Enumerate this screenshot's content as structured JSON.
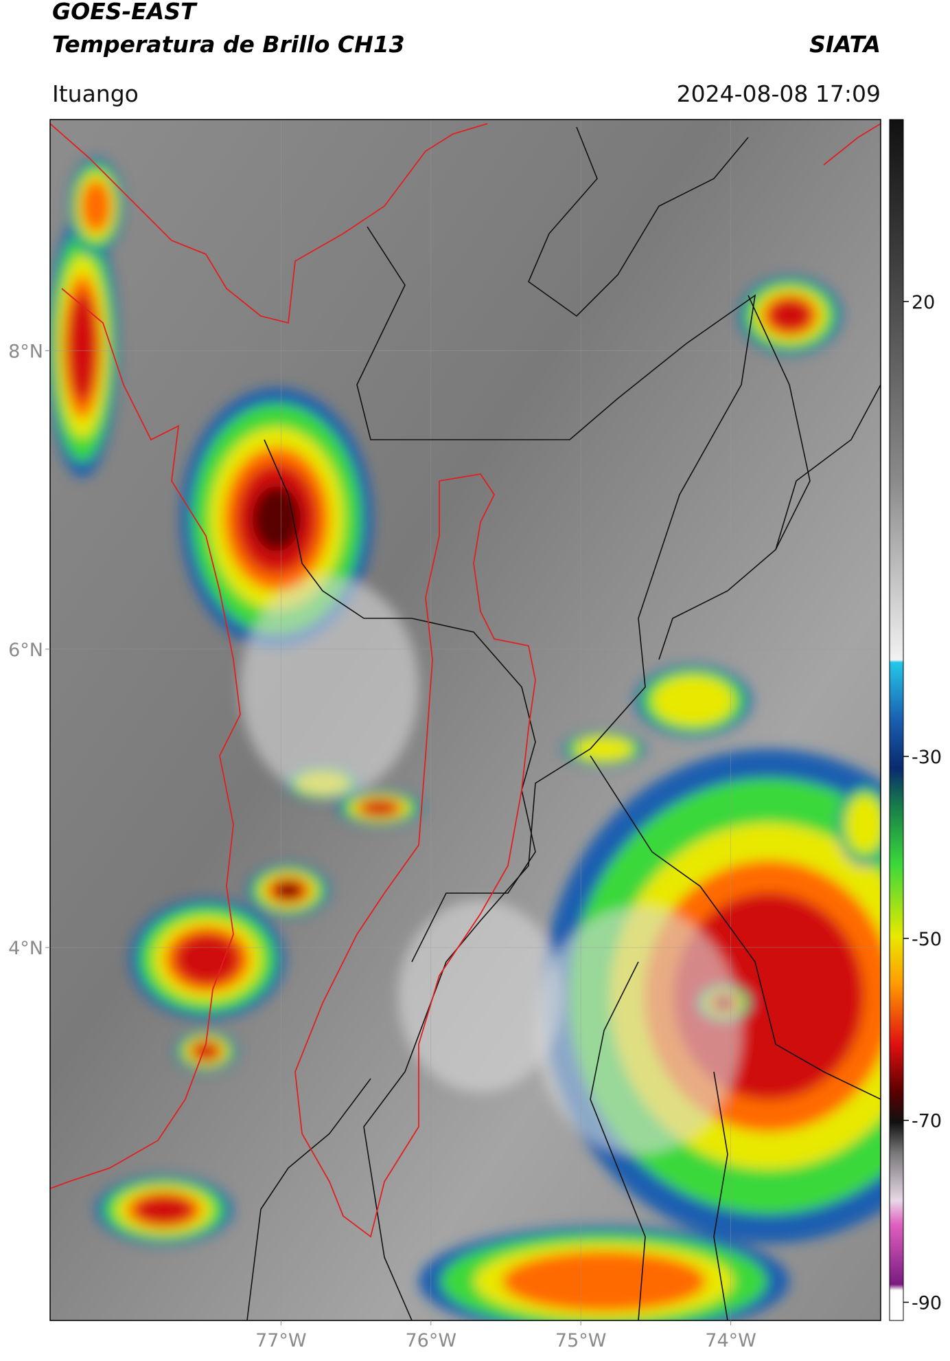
{
  "header": {
    "title": "GOES-EAST",
    "subtitle": "Temperatura de Brillo CH13",
    "agency": "SIATA",
    "location": "Ituango",
    "timestamp": "2024-08-08 17:09"
  },
  "map": {
    "xlim": [
      -78.54,
      -73.0
    ],
    "ylim": [
      1.5,
      9.55
    ],
    "xticks": [
      {
        "value": -77,
        "label": "77°W"
      },
      {
        "value": -76,
        "label": "76°W"
      },
      {
        "value": -75,
        "label": "75°W"
      },
      {
        "value": -74,
        "label": "74°W"
      }
    ],
    "yticks": [
      {
        "value": 8,
        "label": "8°N"
      },
      {
        "value": 6,
        "label": "6°N"
      },
      {
        "value": 4,
        "label": "4°N"
      }
    ]
  },
  "colorbar": {
    "clim": [
      -92,
      40
    ],
    "ticks": [
      20,
      -30,
      -50,
      -70,
      -90
    ]
  }
}
